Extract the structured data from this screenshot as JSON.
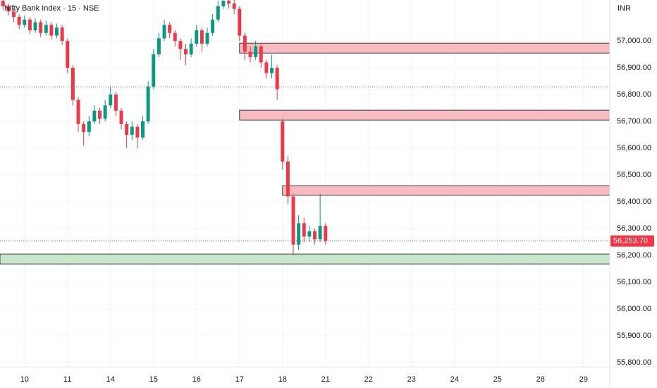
{
  "chart_data": {
    "type": "candlestick",
    "title": "Nifty Bank Index · 15 · NSE",
    "currency": "INR",
    "up_color": "#089981",
    "down_color": "#f23645",
    "grid": true,
    "xlim": [
      -0.57,
      13.61
    ],
    "ylim": [
      55784,
      57153
    ],
    "xticks": [
      {
        "value": 0,
        "label": "10"
      },
      {
        "value": 1,
        "label": "11"
      },
      {
        "value": 2,
        "label": "14"
      },
      {
        "value": 3,
        "label": "15"
      },
      {
        "value": 4,
        "label": "16"
      },
      {
        "value": 5,
        "label": "17"
      },
      {
        "value": 6,
        "label": "18"
      },
      {
        "value": 7,
        "label": "21"
      },
      {
        "value": 8,
        "label": "22"
      },
      {
        "value": 9,
        "label": "23"
      },
      {
        "value": 10,
        "label": "24"
      },
      {
        "value": 11,
        "label": "25"
      },
      {
        "value": 12,
        "label": "28"
      },
      {
        "value": 13,
        "label": "29"
      }
    ],
    "yticks": [
      {
        "value": 55800,
        "label": "55,800.00"
      },
      {
        "value": 55900,
        "label": "55,900.00"
      },
      {
        "value": 56000,
        "label": "56,000.00"
      },
      {
        "value": 56100,
        "label": "56,100.00"
      },
      {
        "value": 56200,
        "label": "56,200.00"
      },
      {
        "value": 56300,
        "label": "56,300.00"
      },
      {
        "value": 56400,
        "label": "56,400.00"
      },
      {
        "value": 56500,
        "label": "56,500.00"
      },
      {
        "value": 56600,
        "label": "56,600.00"
      },
      {
        "value": 56700,
        "label": "56,700.00"
      },
      {
        "value": 56800,
        "label": "56,800.00"
      },
      {
        "value": 56900,
        "label": "56,900.00"
      },
      {
        "value": 57000,
        "label": "57,000.00"
      }
    ],
    "x": [
      -0.5,
      -0.375,
      -0.25,
      -0.125,
      0,
      0.125,
      0.25,
      0.375,
      0.5,
      0.625,
      0.75,
      0.875,
      1,
      1.125,
      1.25,
      1.375,
      1.5,
      1.625,
      1.75,
      1.875,
      2,
      2.125,
      2.25,
      2.375,
      2.5,
      2.625,
      2.75,
      2.875,
      3,
      3.125,
      3.25,
      3.375,
      3.5,
      3.625,
      3.75,
      3.875,
      4,
      4.125,
      4.25,
      4.375,
      4.5,
      4.625,
      4.75,
      4.875,
      5,
      5.125,
      5.25,
      5.375,
      5.5,
      5.625,
      5.75,
      5.875,
      6,
      6.125,
      6.25,
      6.375,
      6.5,
      6.625,
      6.75,
      6.875,
      7
    ],
    "open": [
      57150,
      57130,
      57110,
      57090,
      57060,
      57080,
      57040,
      57070,
      57030,
      57060,
      57020,
      57050,
      57000,
      56900,
      56780,
      56690,
      56660,
      56700,
      56740,
      56710,
      56760,
      56800,
      56740,
      56690,
      56650,
      56680,
      56640,
      56700,
      56830,
      56950,
      57010,
      57060,
      57030,
      57000,
      56970,
      56950,
      56990,
      57040,
      56990,
      57030,
      57080,
      57130,
      57150,
      57140,
      57120,
      57020,
      56960,
      56940,
      56980,
      56920,
      56880,
      56900,
      56700,
      56550,
      56420,
      56240,
      56320,
      56270,
      56290,
      56260,
      56310
    ],
    "high": [
      57160,
      57140,
      57125,
      57100,
      57095,
      57090,
      57085,
      57080,
      57075,
      57070,
      57065,
      57060,
      57010,
      56910,
      56790,
      56700,
      56720,
      56760,
      56750,
      56780,
      56830,
      56810,
      56750,
      56700,
      56700,
      56690,
      56720,
      56850,
      56970,
      57030,
      57080,
      57070,
      57040,
      57010,
      56990,
      57010,
      57060,
      57050,
      57050,
      57100,
      57150,
      57160,
      57160,
      57155,
      57130,
      57030,
      56980,
      57000,
      56990,
      56930,
      56950,
      56910,
      56710,
      56570,
      56430,
      56350,
      56340,
      56310,
      56300,
      56430,
      56320
    ],
    "low": [
      57115,
      57095,
      57070,
      57045,
      57050,
      57025,
      57030,
      57015,
      57020,
      57005,
      57010,
      56985,
      56880,
      56760,
      56660,
      56610,
      56645,
      56690,
      56690,
      56700,
      56750,
      56720,
      56670,
      56600,
      56630,
      56600,
      56630,
      56690,
      56820,
      56940,
      57000,
      57010,
      56980,
      56930,
      56910,
      56940,
      56980,
      56960,
      56980,
      57020,
      57070,
      57120,
      57120,
      57100,
      57000,
      56930,
      56920,
      56930,
      56900,
      56860,
      56860,
      56780,
      56520,
      56390,
      56200,
      56220,
      56250,
      56250,
      56240,
      56250,
      56240
    ],
    "close": [
      57130,
      57110,
      57090,
      57060,
      57080,
      57040,
      57070,
      57030,
      57060,
      57020,
      57050,
      57000,
      56900,
      56780,
      56690,
      56660,
      56700,
      56740,
      56710,
      56760,
      56800,
      56740,
      56690,
      56650,
      56680,
      56640,
      56700,
      56830,
      56950,
      57010,
      57060,
      57030,
      57000,
      56970,
      56950,
      56990,
      57040,
      56990,
      57030,
      57080,
      57130,
      57150,
      57140,
      57120,
      57020,
      56960,
      56940,
      56980,
      56920,
      56880,
      56900,
      56820,
      56550,
      56420,
      56240,
      56320,
      56270,
      56290,
      56260,
      56310,
      56253.7
    ],
    "zones": [
      {
        "x_start": 5,
        "y_low": 56955,
        "y_high": 56992,
        "color": "#f8bcc0"
      },
      {
        "x_start": 5,
        "y_low": 56705,
        "y_high": 56742,
        "color": "#f8bcc0"
      },
      {
        "x_start": 6,
        "y_low": 56424,
        "y_high": 56460,
        "color": "#f8bcc0"
      },
      {
        "x_start": -0.57,
        "y_low": 56168,
        "y_high": 56205,
        "color": "#c8e6c9"
      }
    ],
    "hlines": [
      {
        "value": 56829,
        "color": "#787b86"
      }
    ],
    "last_price": 56253.7,
    "last_price_label": "56,253.70"
  }
}
